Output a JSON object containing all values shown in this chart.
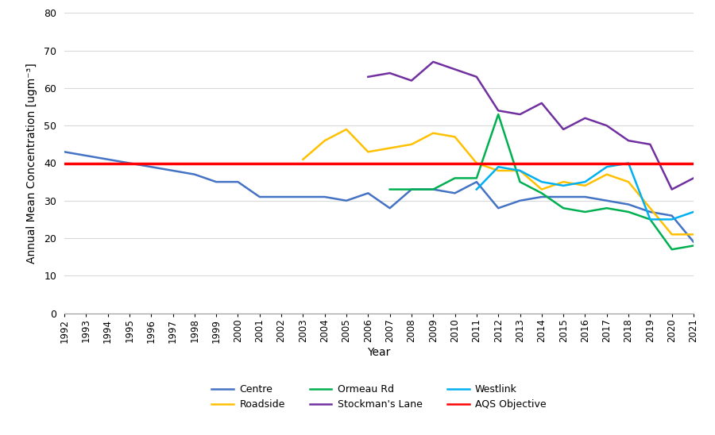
{
  "ylabel": "Annual Mean Concentration [ugm⁻³]",
  "xlabel": "Year",
  "ylim": [
    0,
    80
  ],
  "yticks": [
    0,
    10,
    20,
    30,
    40,
    50,
    60,
    70,
    80
  ],
  "xlim": [
    1992,
    2021
  ],
  "aqs_objective": 40,
  "series": {
    "Centre": {
      "color": "#4472C4",
      "years": [
        1992,
        1993,
        1994,
        1995,
        1996,
        1997,
        1998,
        1999,
        2000,
        2001,
        2002,
        2003,
        2004,
        2005,
        2006,
        2007,
        2008,
        2009,
        2010,
        2011,
        2012,
        2013,
        2014,
        2015,
        2016,
        2017,
        2018,
        2019,
        2020,
        2021
      ],
      "values": [
        43,
        42,
        41,
        40,
        39,
        38,
        37,
        35,
        35,
        31,
        31,
        31,
        31,
        30,
        32,
        28,
        33,
        33,
        32,
        35,
        28,
        30,
        31,
        31,
        31,
        30,
        29,
        27,
        26,
        19
      ]
    },
    "Roadside": {
      "color": "#FFC000",
      "years": [
        2003,
        2004,
        2005,
        2006,
        2007,
        2008,
        2009,
        2010,
        2011,
        2012,
        2013,
        2014,
        2015,
        2016,
        2017,
        2018,
        2019,
        2020,
        2021
      ],
      "values": [
        41,
        46,
        49,
        43,
        44,
        45,
        48,
        47,
        40,
        38,
        38,
        33,
        35,
        34,
        37,
        35,
        28,
        21,
        21
      ]
    },
    "Ormeau Rd": {
      "color": "#00B050",
      "years": [
        2007,
        2008,
        2009,
        2010,
        2011,
        2012,
        2013,
        2014,
        2015,
        2016,
        2017,
        2018,
        2019,
        2020,
        2021
      ],
      "values": [
        33,
        33,
        33,
        36,
        36,
        53,
        35,
        32,
        28,
        27,
        28,
        27,
        25,
        17,
        18
      ]
    },
    "Stockman's Lane": {
      "color": "#7030A0",
      "years": [
        2006,
        2007,
        2008,
        2009,
        2010,
        2011,
        2012,
        2013,
        2014,
        2015,
        2016,
        2017,
        2018,
        2019,
        2020,
        2021
      ],
      "values": [
        63,
        64,
        62,
        67,
        65,
        63,
        54,
        53,
        56,
        49,
        52,
        50,
        46,
        45,
        33,
        36
      ]
    },
    "Westlink": {
      "color": "#00B0F0",
      "years": [
        2011,
        2012,
        2013,
        2014,
        2015,
        2016,
        2017,
        2018,
        2019,
        2020,
        2021
      ],
      "values": [
        33,
        39,
        38,
        35,
        34,
        35,
        39,
        40,
        25,
        25,
        27
      ]
    }
  },
  "aqs_color": "#FF0000",
  "grid_color": "#D9D9D9",
  "background_color": "#FFFFFF",
  "legend_row1": [
    "Centre",
    "Roadside",
    "Ormeau Rd"
  ],
  "legend_row2": [
    "Stockman's Lane",
    "Westlink",
    "AQS Objective"
  ]
}
